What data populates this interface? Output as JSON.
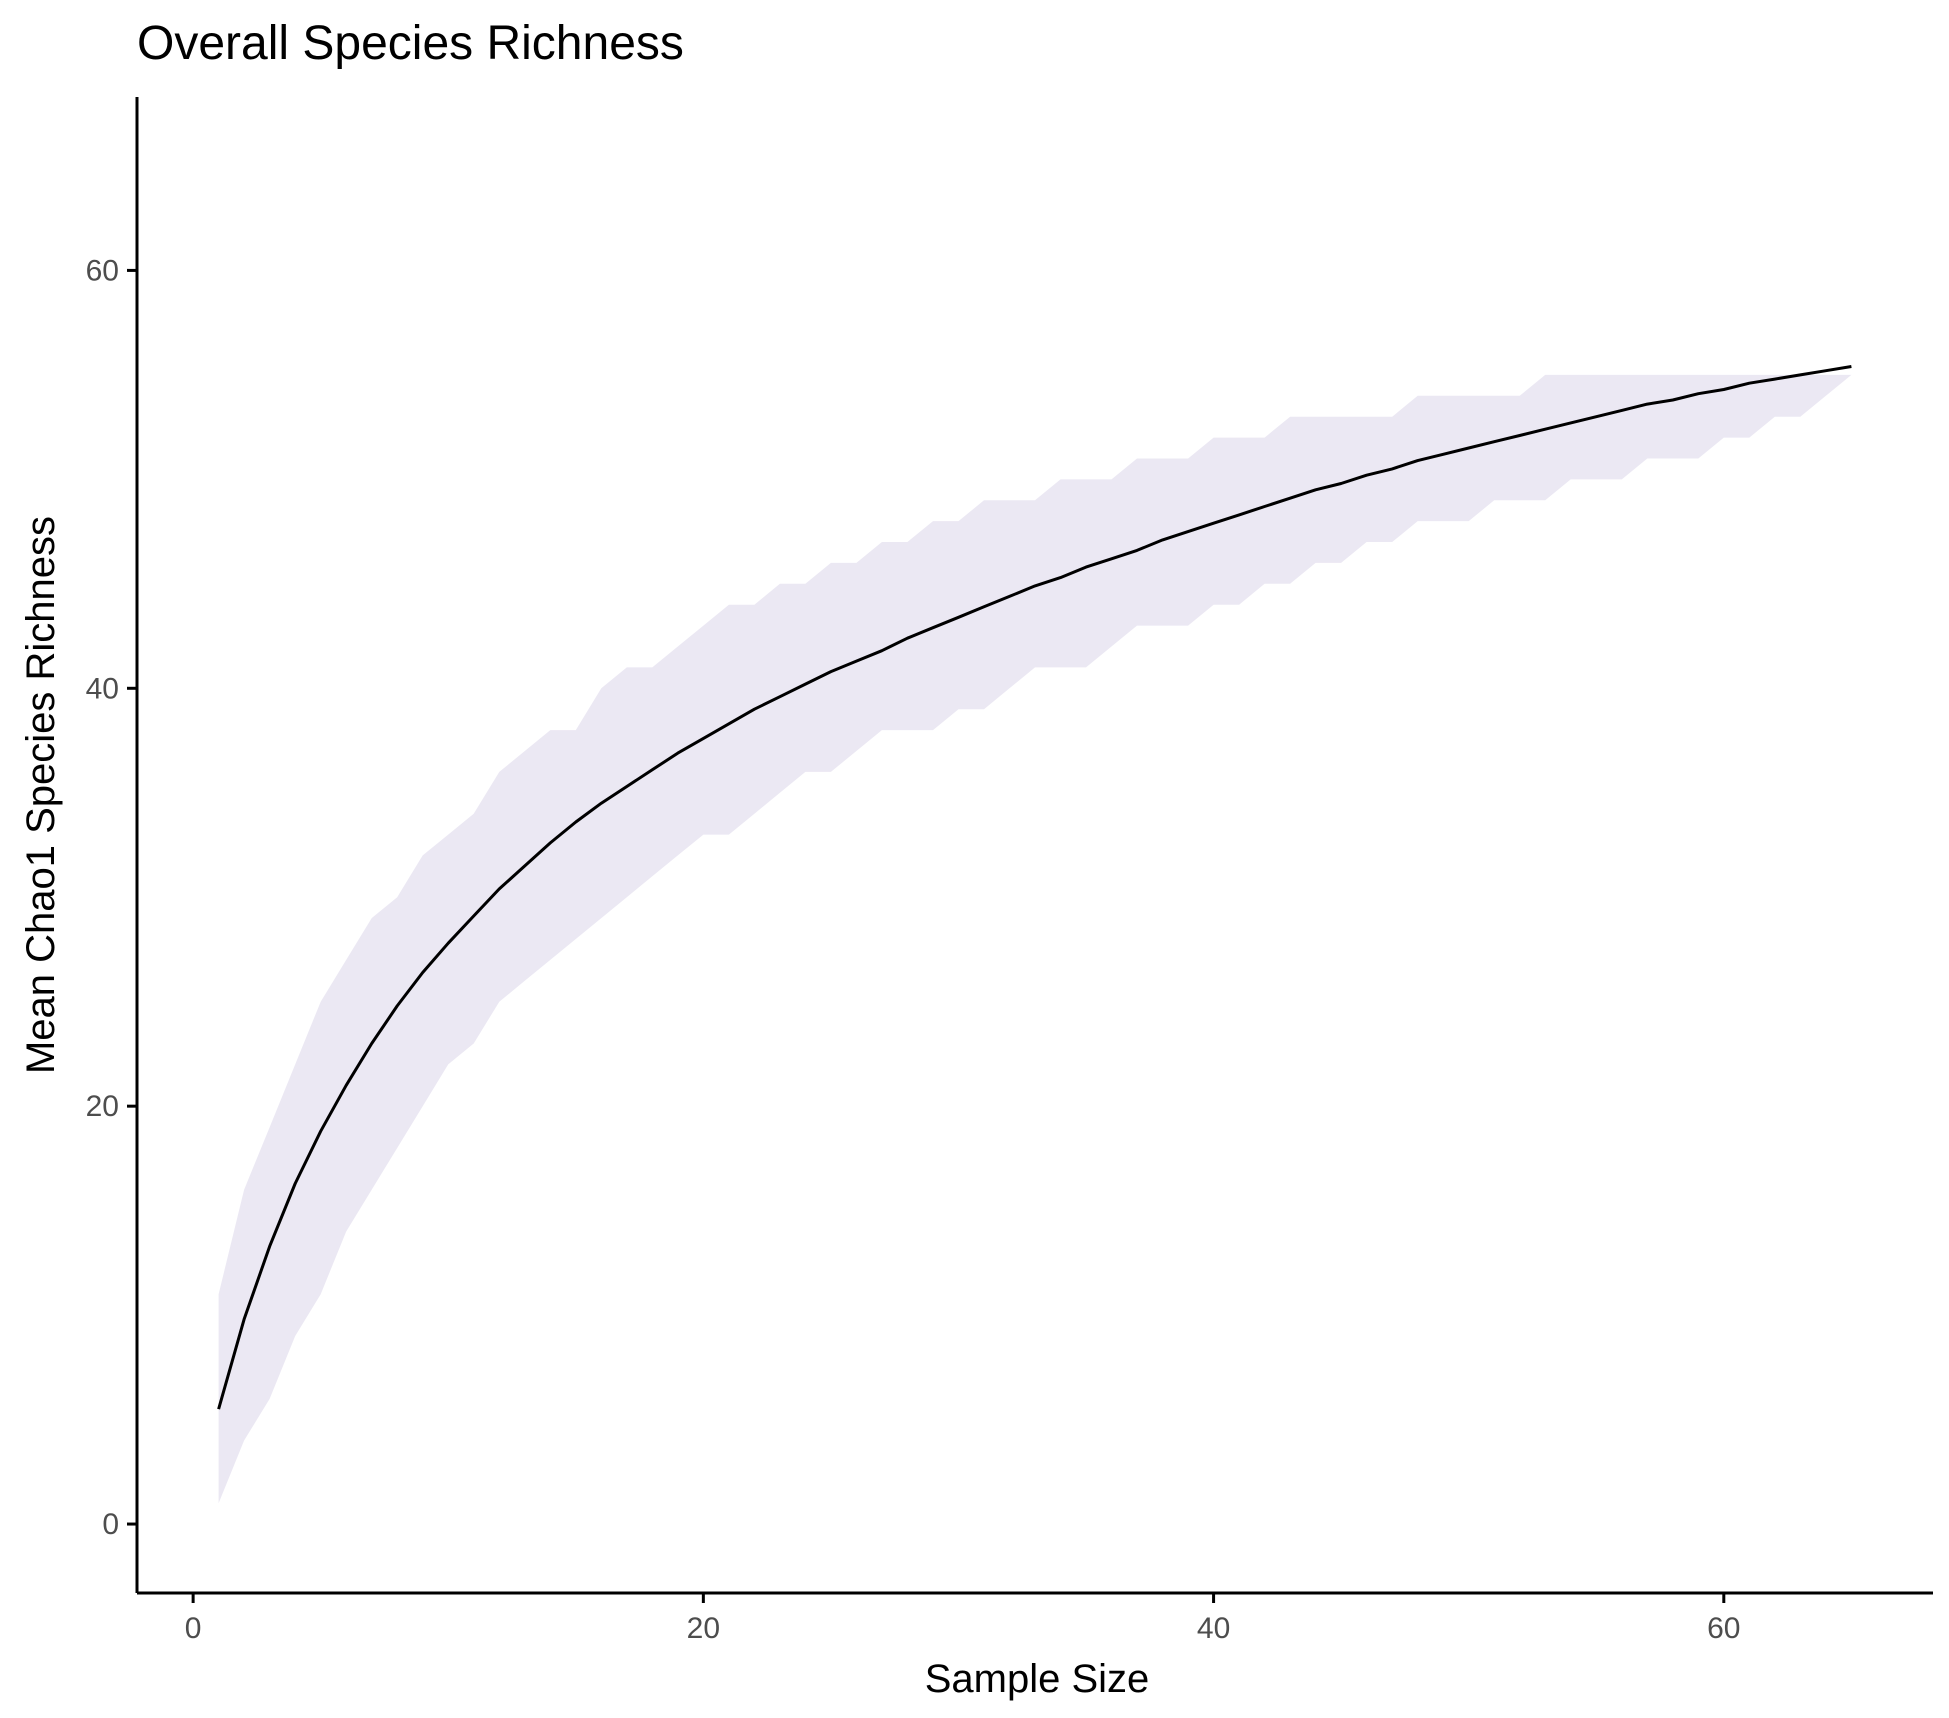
{
  "chart_data": {
    "type": "area",
    "title": "Overall Species Richness",
    "xlabel": "Sample Size",
    "ylabel": "Mean Chao1 Species Richness",
    "xlim": [
      -2.2,
      68.2
    ],
    "ylim": [
      -3.3,
      68.3
    ],
    "x_ticks": [
      0,
      20,
      40,
      60
    ],
    "y_ticks": [
      0,
      20,
      40,
      60
    ],
    "grid": false,
    "legend": "none",
    "colors": {
      "line": "#000000",
      "ribbon": "#ebe8f3",
      "axis": "#000000",
      "tick_text": "#4d4d4d"
    },
    "series": [
      {
        "x": [
          1,
          2,
          3,
          4,
          5,
          6,
          7,
          8,
          9,
          10,
          11,
          12,
          13,
          14,
          15,
          16,
          17,
          18,
          19,
          20,
          21,
          22,
          23,
          24,
          25,
          26,
          27,
          28,
          29,
          30,
          31,
          32,
          33,
          34,
          35,
          36,
          37,
          38,
          39,
          40,
          41,
          42,
          43,
          44,
          45,
          46,
          47,
          48,
          49,
          50,
          51,
          52,
          53,
          54,
          55,
          56,
          57,
          58,
          59,
          60,
          61,
          62,
          63,
          64,
          65
        ],
        "mean": [
          5.5,
          9.8,
          13.3,
          16.3,
          18.8,
          21,
          23,
          24.8,
          26.4,
          27.8,
          29.1,
          30.4,
          31.5,
          32.6,
          33.6,
          34.5,
          35.3,
          36.1,
          36.9,
          37.6,
          38.3,
          39,
          39.6,
          40.2,
          40.8,
          41.3,
          41.8,
          42.4,
          42.9,
          43.4,
          43.9,
          44.4,
          44.9,
          45.3,
          45.8,
          46.2,
          46.6,
          47.1,
          47.5,
          47.9,
          48.3,
          48.7,
          49.1,
          49.5,
          49.8,
          50.2,
          50.5,
          50.9,
          51.2,
          51.5,
          51.8,
          52.1,
          52.4,
          52.7,
          53,
          53.3,
          53.6,
          53.8,
          54.1,
          54.3,
          54.6,
          54.8,
          55,
          55.2,
          55.4
        ],
        "upper": [
          11,
          16,
          19,
          22,
          25,
          27,
          29,
          30,
          32,
          33,
          34,
          36,
          37,
          38,
          38,
          40,
          41,
          41,
          42,
          43,
          44,
          44,
          45,
          45,
          46,
          46,
          47,
          47,
          48,
          48,
          49,
          49,
          49,
          50,
          50,
          50,
          51,
          51,
          51,
          52,
          52,
          52,
          53,
          53,
          53,
          53,
          53,
          54,
          54,
          54,
          54,
          54,
          55,
          55,
          55,
          55,
          55,
          55,
          55,
          55,
          55,
          55,
          55,
          55,
          55
        ],
        "lower": [
          1,
          4,
          6,
          9,
          11,
          14,
          16,
          18,
          20,
          22,
          23,
          25,
          26,
          27,
          28,
          29,
          30,
          31,
          32,
          33,
          33,
          34,
          35,
          36,
          36,
          37,
          38,
          38,
          38,
          39,
          39,
          40,
          41,
          41,
          41,
          42,
          43,
          43,
          43,
          44,
          44,
          45,
          45,
          46,
          46,
          47,
          47,
          48,
          48,
          48,
          49,
          49,
          49,
          50,
          50,
          50,
          51,
          51,
          51,
          52,
          52,
          53,
          53,
          54,
          55
        ]
      }
    ]
  }
}
